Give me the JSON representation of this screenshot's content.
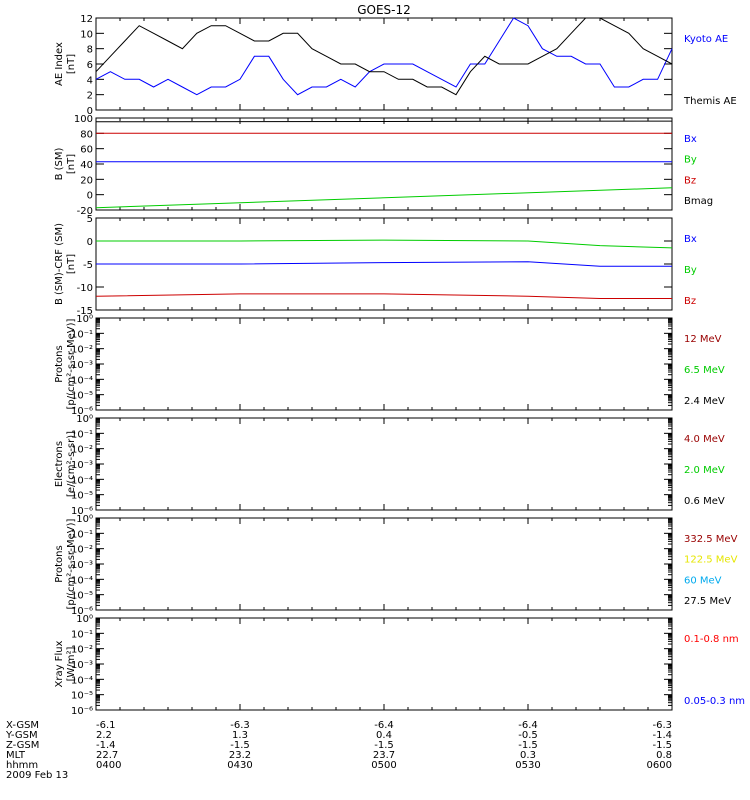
{
  "title": "GOES-12",
  "chart_data": [
    {
      "type": "line",
      "ylabel": "AE Index",
      "yunit": "[nT]",
      "ylim": [
        0,
        12
      ],
      "yticks": [
        "0",
        "2",
        "4",
        "6",
        "8",
        "10",
        "12"
      ],
      "xlim": [
        "0400",
        "0600"
      ],
      "series": [
        {
          "name": "Kyoto AE",
          "color": "#0000ff",
          "x": [
            "0400",
            "0403",
            "0406",
            "0409",
            "0412",
            "0415",
            "0418",
            "0421",
            "0424",
            "0427",
            "0430",
            "0433",
            "0436",
            "0439",
            "0442",
            "0445",
            "0448",
            "0451",
            "0454",
            "0457",
            "0500",
            "0503",
            "0506",
            "0509",
            "0512",
            "0515",
            "0518",
            "0521",
            "0524",
            "0527",
            "0530",
            "0533",
            "0536",
            "0539",
            "0542",
            "0545",
            "0548",
            "0551",
            "0554",
            "0557",
            "0600"
          ],
          "y": [
            4,
            5,
            4,
            4,
            3,
            4,
            3,
            2,
            3,
            3,
            4,
            7,
            7,
            4,
            2,
            3,
            3,
            4,
            3,
            5,
            6,
            6,
            6,
            5,
            4,
            3,
            6,
            6,
            9,
            12,
            11,
            8,
            7,
            7,
            6,
            6,
            3,
            3,
            4,
            4,
            8
          ]
        },
        {
          "name": "Themis AE",
          "color": "#000000",
          "x": [
            "0400",
            "0403",
            "0406",
            "0409",
            "0412",
            "0415",
            "0418",
            "0421",
            "0424",
            "0427",
            "0430",
            "0433",
            "0436",
            "0439",
            "0442",
            "0445",
            "0448",
            "0451",
            "0454",
            "0457",
            "0500",
            "0503",
            "0506",
            "0509",
            "0512",
            "0515",
            "0518",
            "0521",
            "0524",
            "0527",
            "0530",
            "0533",
            "0536",
            "0539",
            "0542",
            "0545",
            "0548",
            "0551",
            "0554",
            "0557",
            "0600"
          ],
          "y": [
            5,
            7,
            9,
            11,
            10,
            9,
            8,
            10,
            11,
            11,
            10,
            9,
            9,
            10,
            10,
            8,
            7,
            6,
            6,
            5,
            5,
            4,
            4,
            3,
            3,
            2,
            5,
            7,
            6,
            6,
            6,
            7,
            8,
            10,
            12,
            12,
            11,
            10,
            8,
            7,
            6
          ]
        }
      ]
    },
    {
      "type": "line",
      "ylabel": "B (SM)",
      "yunit": "[nT]",
      "ylim": [
        -20,
        100
      ],
      "yticks": [
        "-20",
        "0",
        "20",
        "40",
        "60",
        "80",
        "100"
      ],
      "series": [
        {
          "name": "Bx",
          "color": "#0000ff",
          "x": [
            "0400",
            "0600"
          ],
          "y": [
            43,
            43
          ]
        },
        {
          "name": "By",
          "color": "#00cc00",
          "x": [
            "0400",
            "0600"
          ],
          "y": [
            -17,
            9
          ]
        },
        {
          "name": "Bz",
          "color": "#cc0000",
          "x": [
            "0400",
            "0600"
          ],
          "y": [
            80,
            80
          ]
        },
        {
          "name": "Bmag",
          "color": "#000000",
          "x": [
            "0400",
            "0600"
          ],
          "y": [
            95,
            96
          ]
        }
      ]
    },
    {
      "type": "line",
      "ylabel": "B (SM)-CRF (SM)",
      "yunit": "[nT]",
      "ylim": [
        -15,
        5
      ],
      "yticks": [
        "-15",
        "-10",
        "-5",
        "0",
        "5"
      ],
      "series": [
        {
          "name": "Bx",
          "color": "#0000ff",
          "x": [
            "0400",
            "0430",
            "0500",
            "0530",
            "0545",
            "0600"
          ],
          "y": [
            -5,
            -5,
            -4.7,
            -4.5,
            -5.5,
            -5.5
          ]
        },
        {
          "name": "By",
          "color": "#00cc00",
          "x": [
            "0400",
            "0430",
            "0500",
            "0530",
            "0545",
            "0600"
          ],
          "y": [
            0,
            0,
            0.2,
            0,
            -1,
            -1.5
          ]
        },
        {
          "name": "Bz",
          "color": "#cc0000",
          "x": [
            "0400",
            "0430",
            "0500",
            "0530",
            "0545",
            "0600"
          ],
          "y": [
            -12,
            -11.5,
            -11.5,
            -12,
            -12.5,
            -12.5
          ]
        }
      ]
    },
    {
      "type": "line",
      "ylabel": "Protons",
      "yunit": "[p/(cm²-s-sr-MeV)]",
      "yscale": "log",
      "yticks": [
        "10⁻⁶",
        "10⁻⁵",
        "10⁻⁴",
        "10⁻³",
        "10⁻²",
        "10⁻¹",
        "10⁰"
      ],
      "series": [
        {
          "name": "12 MeV",
          "color": "#990000"
        },
        {
          "name": "6.5 MeV",
          "color": "#00cc00"
        },
        {
          "name": "2.4 MeV",
          "color": "#000000"
        }
      ]
    },
    {
      "type": "line",
      "ylabel": "Electrons",
      "yunit": "[e/(cm²-s-sr)]",
      "yscale": "log",
      "yticks": [
        "10⁻⁶",
        "10⁻⁵",
        "10⁻⁴",
        "10⁻³",
        "10⁻²",
        "10⁻¹",
        "10⁰"
      ],
      "series": [
        {
          "name": "4.0 MeV",
          "color": "#990000"
        },
        {
          "name": "2.0 MeV",
          "color": "#00cc00"
        },
        {
          "name": "0.6 MeV",
          "color": "#000000"
        }
      ]
    },
    {
      "type": "line",
      "ylabel": "Protons",
      "yunit": "[p/(cm²-s-sr-MeV)]",
      "yscale": "log",
      "yticks": [
        "10⁻⁶",
        "10⁻⁵",
        "10⁻⁴",
        "10⁻³",
        "10⁻²",
        "10⁻¹",
        "10⁰"
      ],
      "series": [
        {
          "name": "332.5 MeV",
          "color": "#990000"
        },
        {
          "name": "122.5 MeV",
          "color": "#e6e600"
        },
        {
          "name": "60 MeV",
          "color": "#00aaee"
        },
        {
          "name": "27.5 MeV",
          "color": "#000000"
        }
      ]
    },
    {
      "type": "line",
      "ylabel": "Xray Flux",
      "yunit": "[W/m²]",
      "yscale": "log",
      "yticks": [
        "10⁻⁶",
        "10⁻⁵",
        "10⁻⁴",
        "10⁻³",
        "10⁻²",
        "10⁻¹",
        "10⁰"
      ],
      "series": [
        {
          "name": "0.1-0.8 nm",
          "color": "#ff0000"
        },
        {
          "name": "0.05-0.3 nm",
          "color": "#0000ff"
        }
      ]
    }
  ],
  "xaxis_table": {
    "rows": [
      {
        "label": "X-GSM",
        "values": [
          "-6.1",
          "-6.3",
          "-6.4",
          "-6.4",
          "-6.3"
        ]
      },
      {
        "label": "Y-GSM",
        "values": [
          "2.2",
          "1.3",
          "0.4",
          "-0.5",
          "-1.4"
        ]
      },
      {
        "label": "Z-GSM",
        "values": [
          "-1.4",
          "-1.5",
          "-1.5",
          "-1.5",
          "-1.5"
        ]
      },
      {
        "label": "MLT",
        "values": [
          "22.7",
          "23.2",
          "23.7",
          "0.3",
          "0.8"
        ]
      },
      {
        "label": "hhmm",
        "values": [
          "0400",
          "0430",
          "0500",
          "0530",
          "0600"
        ]
      }
    ],
    "date": "2009 Feb 13"
  }
}
